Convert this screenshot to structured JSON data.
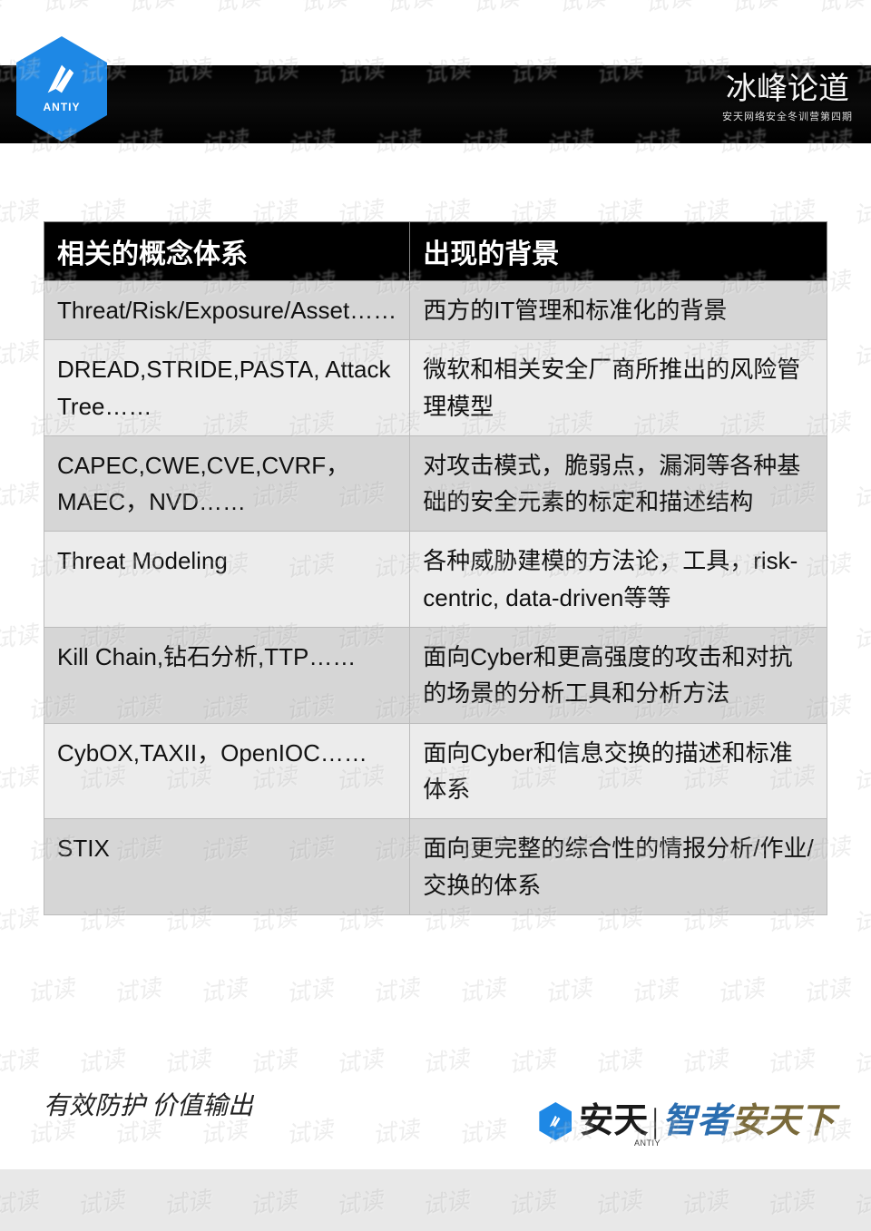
{
  "watermark": {
    "text": "试读",
    "color": "rgba(0,0,0,0.07)",
    "fontsize": 26
  },
  "logo": {
    "label": "ANTIY",
    "color": "#1e88e5"
  },
  "header": {
    "script": "冰峰论道",
    "sub": "安天网络安全冬训营第四期"
  },
  "table": {
    "columns": [
      "相关的概念体系",
      "出现的背景"
    ],
    "header_bg": "#000000",
    "header_fg": "#ffffff",
    "row_bg_a": "#d6d6d6",
    "row_bg_b": "#ececec",
    "border_color": "#bbbbbb",
    "fontsize_header": 30,
    "fontsize_cell": 26,
    "rows": [
      {
        "c0": "Threat/Risk/Exposure/Asset……",
        "c1": "西方的IT管理和标准化的背景"
      },
      {
        "c0": "DREAD,STRIDE,PASTA, Attack Tree……",
        "c1": "微软和相关安全厂商所推出的风险管理模型"
      },
      {
        "c0": "CAPEC,CWE,CVE,CVRF，MAEC，NVD……",
        "c1": "对攻击模式，脆弱点，漏洞等各种基础的安全元素的标定和描述结构"
      },
      {
        "c0": "Threat Modeling",
        "c1": "各种威胁建模的方法论，工具，risk-centric, data-driven等等"
      },
      {
        "c0": "Kill Chain,钻石分析,TTP……",
        "c1": "面向Cyber和更高强度的攻击和对抗的场景的分析工具和分析方法"
      },
      {
        "c0": "CybOX,TAXII，OpenIOC……",
        "c1": "面向Cyber和信息交换的描述和标准体系"
      },
      {
        "c0": "STIX",
        "c1": "面向更完整的综合性的情报分析/作业/交换的体系"
      }
    ]
  },
  "footer": {
    "left": "有效防护 价值输出",
    "small_label": "ANTIY",
    "brand": "安天",
    "tag1": "智者",
    "tag2": "安天下"
  }
}
